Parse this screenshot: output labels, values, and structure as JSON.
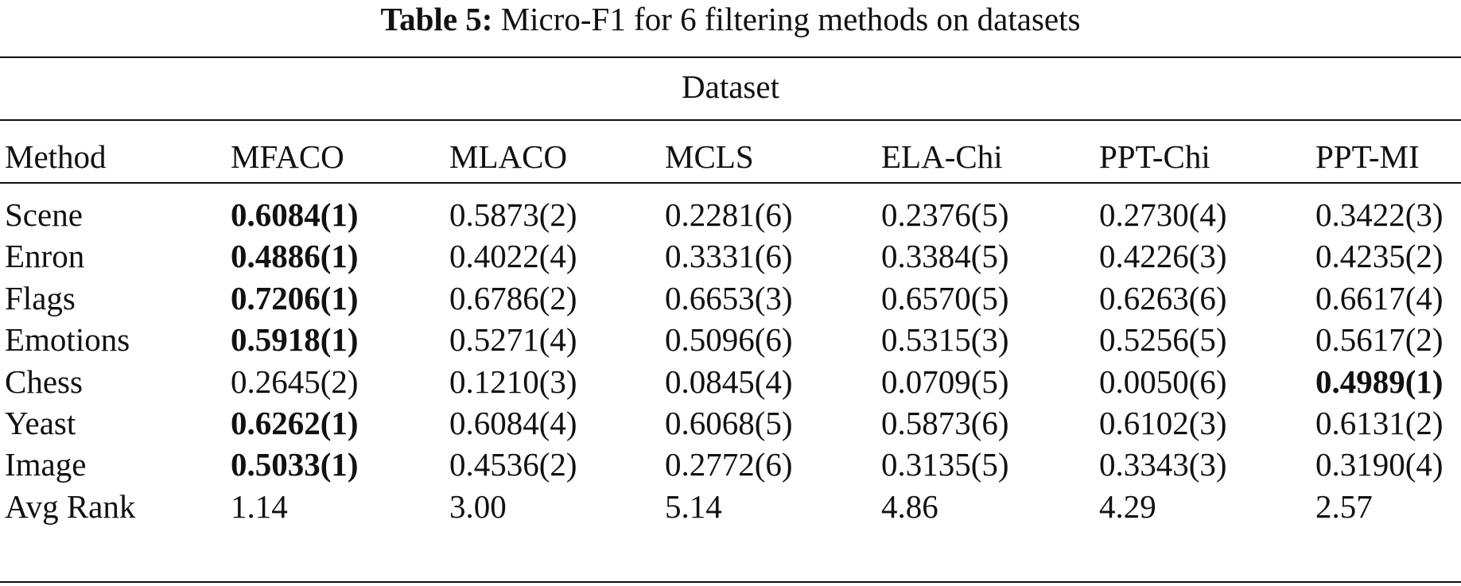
{
  "caption": {
    "label": "Table 5:",
    "text": "Micro-F1 for 6 filtering methods on datasets"
  },
  "table": {
    "group_header": "Dataset",
    "columns": [
      "Method",
      "MFACO",
      "MLACO",
      "MCLS",
      "ELA-Chi",
      "PPT-Chi",
      "PPT-MI"
    ],
    "rows": [
      [
        "Scene",
        "0.6084(1)",
        "0.5873(2)",
        "0.2281(6)",
        "0.2376(5)",
        "0.2730(4)",
        "0.3422(3)"
      ],
      [
        "Enron",
        "0.4886(1)",
        "0.4022(4)",
        "0.3331(6)",
        "0.3384(5)",
        "0.4226(3)",
        "0.4235(2)"
      ],
      [
        "Flags",
        "0.7206(1)",
        "0.6786(2)",
        "0.6653(3)",
        "0.6570(5)",
        "0.6263(6)",
        "0.6617(4)"
      ],
      [
        "Emotions",
        "0.5918(1)",
        "0.5271(4)",
        "0.5096(6)",
        "0.5315(3)",
        "0.5256(5)",
        "0.5617(2)"
      ],
      [
        "Chess",
        "0.2645(2)",
        "0.1210(3)",
        "0.0845(4)",
        "0.0709(5)",
        "0.0050(6)",
        "0.4989(1)"
      ],
      [
        "Yeast",
        "0.6262(1)",
        "0.6084(4)",
        "0.6068(5)",
        "0.5873(6)",
        "0.6102(3)",
        "0.6131(2)"
      ],
      [
        "Image",
        "0.5033(1)",
        "0.4536(2)",
        "0.2772(6)",
        "0.3135(5)",
        "0.3343(3)",
        "0.3190(4)"
      ],
      [
        "Avg Rank",
        "1.14",
        "3.00",
        "5.14",
        "4.86",
        "4.29",
        "2.57"
      ]
    ],
    "bold_cells": [
      [
        0,
        1
      ],
      [
        1,
        1
      ],
      [
        2,
        1
      ],
      [
        3,
        1
      ],
      [
        4,
        6
      ],
      [
        5,
        1
      ],
      [
        6,
        1
      ]
    ]
  }
}
